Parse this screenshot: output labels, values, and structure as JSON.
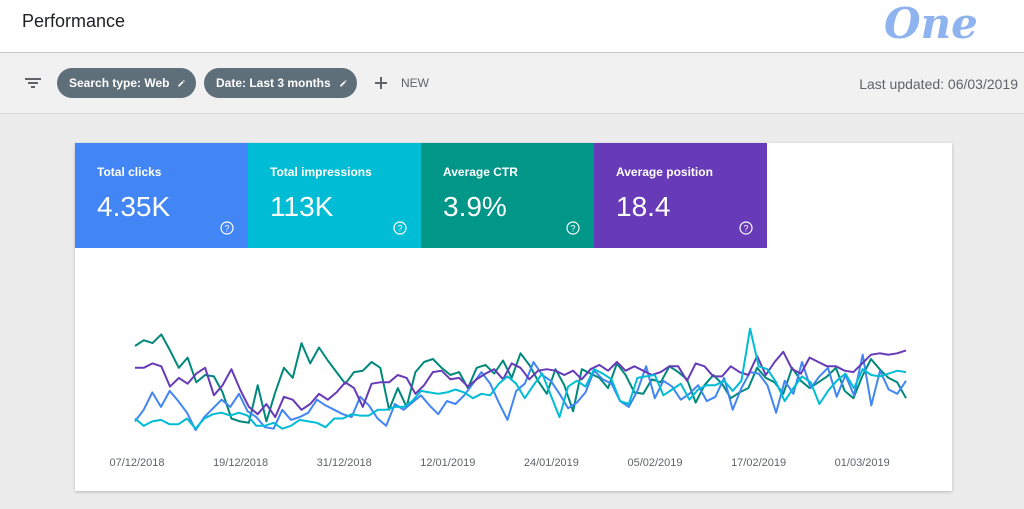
{
  "header": {
    "title": "Performance",
    "logo_text": "One"
  },
  "toolbar": {
    "filter_icon": "filter-icon",
    "chips": [
      {
        "label": "Search type: Web",
        "icon": "pencil-icon"
      },
      {
        "label": "Date: Last 3 months",
        "icon": "pencil-icon"
      }
    ],
    "new_label": "NEW",
    "last_updated": "Last updated: 06/03/2019"
  },
  "metrics": [
    {
      "label": "Total clicks",
      "value": "4.35K",
      "color": "#4285f4"
    },
    {
      "label": "Total impressions",
      "value": "113K",
      "color": "#00bcd4"
    },
    {
      "label": "Average CTR",
      "value": "3.9%",
      "color": "#009688"
    },
    {
      "label": "Average position",
      "value": "18.4",
      "color": "#673ab7"
    }
  ],
  "chart_data": {
    "type": "line",
    "x_tick_labels": [
      "07/12/2018",
      "19/12/2018",
      "31/12/2018",
      "12/01/2019",
      "24/01/2019",
      "05/02/2019",
      "17/02/2019",
      "01/03/2019"
    ],
    "grid": false,
    "legend": "none",
    "series": [
      {
        "color": "#00897b",
        "values": [
          60,
          64,
          62,
          68,
          57,
          45,
          52,
          35,
          40,
          39,
          28,
          10,
          8,
          7,
          33,
          8,
          28,
          45,
          38,
          62,
          48,
          59,
          50,
          42,
          34,
          42,
          43,
          49,
          45,
          16,
          31,
          18,
          42,
          49,
          51,
          45,
          40,
          42,
          31,
          45,
          47,
          41,
          50,
          38,
          55,
          47,
          36,
          27,
          44,
          33,
          15,
          44,
          41,
          38,
          31,
          48,
          40,
          28,
          27,
          37,
          35,
          46,
          42,
          37,
          21,
          33,
          40,
          34,
          24,
          28,
          31,
          45,
          38,
          35,
          27,
          45,
          36,
          31,
          35,
          39,
          45,
          29,
          24,
          39,
          51,
          44,
          38,
          35,
          24
        ]
      },
      {
        "color": "#4285f4",
        "values": [
          8,
          16,
          28,
          18,
          29,
          22,
          14,
          2,
          11,
          17,
          23,
          18,
          27,
          15,
          11,
          4,
          3,
          16,
          9,
          11,
          14,
          23,
          19,
          16,
          13,
          11,
          25,
          19,
          10,
          5,
          20,
          16,
          21,
          26,
          19,
          13,
          22,
          20,
          26,
          34,
          42,
          34,
          21,
          9,
          29,
          34,
          49,
          40,
          36,
          27,
          17,
          21,
          28,
          43,
          37,
          34,
          22,
          18,
          29,
          46,
          24,
          36,
          32,
          23,
          27,
          33,
          22,
          25,
          38,
          16,
          31,
          42,
          41,
          33,
          14,
          36,
          27,
          49,
          31,
          39,
          45,
          25,
          40,
          26,
          54,
          19,
          43,
          30,
          27,
          36
        ]
      },
      {
        "color": "#673ab7",
        "values": [
          45,
          45,
          48,
          46,
          32,
          38,
          34,
          41,
          45,
          26,
          33,
          44,
          30,
          18,
          13,
          20,
          11,
          25,
          23,
          16,
          20,
          27,
          23,
          28,
          35,
          31,
          18,
          34,
          35,
          35,
          40,
          38,
          27,
          33,
          42,
          43,
          37,
          38,
          32,
          37,
          41,
          44,
          37,
          48,
          45,
          37,
          43,
          44,
          43,
          40,
          43,
          37,
          44,
          47,
          43,
          49,
          43,
          46,
          43,
          40,
          42,
          46,
          46,
          36,
          48,
          46,
          39,
          39,
          46,
          42,
          40,
          53,
          40,
          49,
          56,
          44,
          41,
          52,
          49,
          46,
          46,
          43,
          42,
          48,
          54,
          55,
          54,
          55,
          57
        ]
      },
      {
        "color": "#00bcd4",
        "values": [
          10,
          5,
          8,
          9,
          6,
          6,
          10,
          3,
          10,
          13,
          14,
          12,
          14,
          12,
          5,
          5,
          7,
          3,
          5,
          9,
          8,
          7,
          4,
          10,
          10,
          13,
          12,
          12,
          16,
          16,
          18,
          18,
          22,
          29,
          28,
          27,
          28,
          30,
          28,
          24,
          27,
          26,
          34,
          39,
          34,
          24,
          33,
          41,
          26,
          11,
          32,
          36,
          32,
          44,
          41,
          37,
          22,
          20,
          38,
          39,
          40,
          26,
          30,
          34,
          23,
          30,
          33,
          33,
          36,
          29,
          36,
          72,
          46,
          44,
          35,
          22,
          31,
          39,
          35,
          20,
          29,
          36,
          41,
          31,
          44,
          40,
          39,
          41,
          43,
          42
        ]
      }
    ]
  }
}
